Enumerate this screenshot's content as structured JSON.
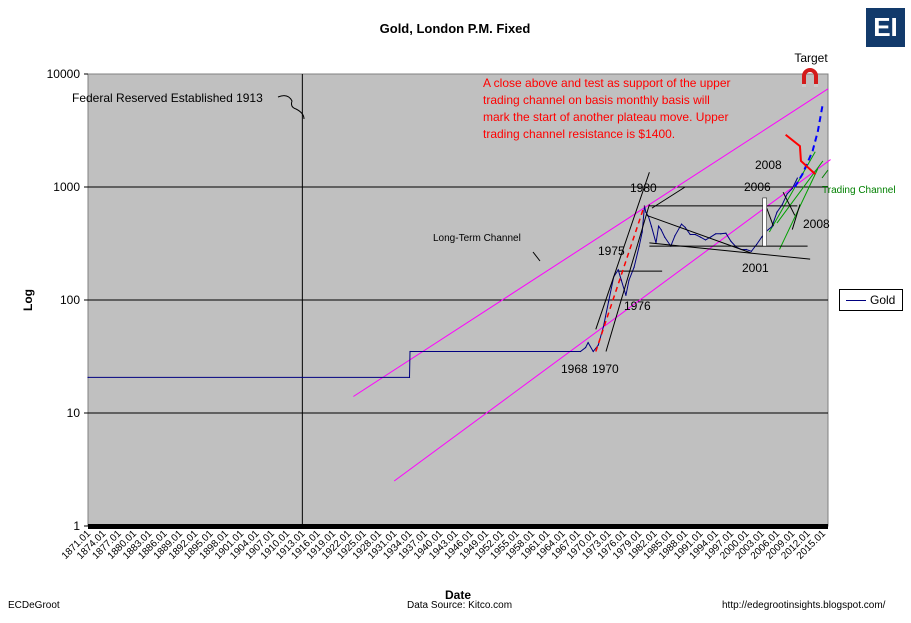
{
  "logo": "EI",
  "footer": {
    "left": "ECDeGroot",
    "center": "Data Source:  Kitco.com",
    "right": "http://edegrootinsights.blogspot.com/"
  },
  "chart_data": {
    "type": "line",
    "title": "Gold, London P.M. Fixed",
    "xlabel": "Date",
    "ylabel": "Log",
    "y_scale": "log",
    "ylim": [
      1,
      10000
    ],
    "y_ticks": [
      "1",
      "10",
      "100",
      "1000",
      "10000"
    ],
    "x_ticks": [
      "1871.01",
      "1874.01",
      "1877.01",
      "1880.01",
      "1883.01",
      "1886.01",
      "1889.01",
      "1892.01",
      "1895.01",
      "1898.01",
      "1901.01",
      "1904.01",
      "1907.01",
      "1910.01",
      "1913.01",
      "1916.01",
      "1919.01",
      "1922.01",
      "1925.01",
      "1928.01",
      "1931.01",
      "1934.01",
      "1937.01",
      "1940.01",
      "1943.01",
      "1946.01",
      "1949.01",
      "1952.01",
      "1955.01",
      "1958.01",
      "1961.01",
      "1964.01",
      "1967.01",
      "1970.01",
      "1973.01",
      "1976.01",
      "1979.01",
      "1982.01",
      "1985.01",
      "1988.01",
      "1991.01",
      "1994.01",
      "1997.01",
      "2000.01",
      "2003.01",
      "2006.01",
      "2009.01",
      "2012.01",
      "2015.01"
    ],
    "xlim": [
      1871,
      2016
    ],
    "grid": "horizontal",
    "legend": "right",
    "colors": {
      "gold": "#000080",
      "plot_bg": "#c0c0c0",
      "channel": "#ff00ff",
      "projection": "#0000ff",
      "red": "#ff0000",
      "green_channel": "#00a000"
    },
    "series": [
      {
        "name": "Gold",
        "x": [
          1871,
          1934,
          1934.1,
          1967.5,
          1968.5,
          1969,
          1970,
          1971,
          1972,
          1973,
          1974,
          1974.9,
          1975.5,
          1976.4,
          1977,
          1978,
          1979,
          1979.6,
          1980.05,
          1980.3,
          1980.8,
          1981.4,
          1982.3,
          1982.8,
          1983.3,
          1984,
          1985.2,
          1986,
          1987.3,
          1988,
          1989,
          1990,
          1991,
          1992,
          1993,
          1994,
          1995,
          1996,
          1997,
          1998,
          1999,
          2000,
          2001,
          2002,
          2003,
          2004,
          2005,
          2006,
          2007,
          2008,
          2009,
          2010
        ],
        "y": [
          20.67,
          20.67,
          35,
          35,
          38,
          42,
          35,
          40,
          58,
          97,
          160,
          185,
          150,
          110,
          150,
          195,
          300,
          400,
          680,
          600,
          550,
          450,
          320,
          450,
          420,
          360,
          300,
          370,
          470,
          440,
          380,
          380,
          360,
          340,
          360,
          385,
          385,
          390,
          330,
          295,
          280,
          280,
          270,
          310,
          360,
          410,
          445,
          600,
          695,
          870,
          970,
          1200
        ]
      }
    ],
    "projection": {
      "x": [
        2009.5,
        2011,
        2012,
        2013,
        2014,
        2015
      ],
      "y": [
        1000,
        1300,
        1650,
        2100,
        3100,
        5500
      ]
    },
    "annotations": [
      "Federal Reserved Established 1913",
      "Long-Term Channel",
      "A close above and test as support of the upper",
      "trading channel on basis monthly basis will",
      "mark the start of another plateau move.  Upper",
      "trading channel resistance is $1400.",
      "Target",
      "Trading Channel",
      "1968",
      "1970",
      "1975",
      "1976",
      "1980",
      "2001",
      "2006",
      "2008",
      "2008"
    ]
  }
}
